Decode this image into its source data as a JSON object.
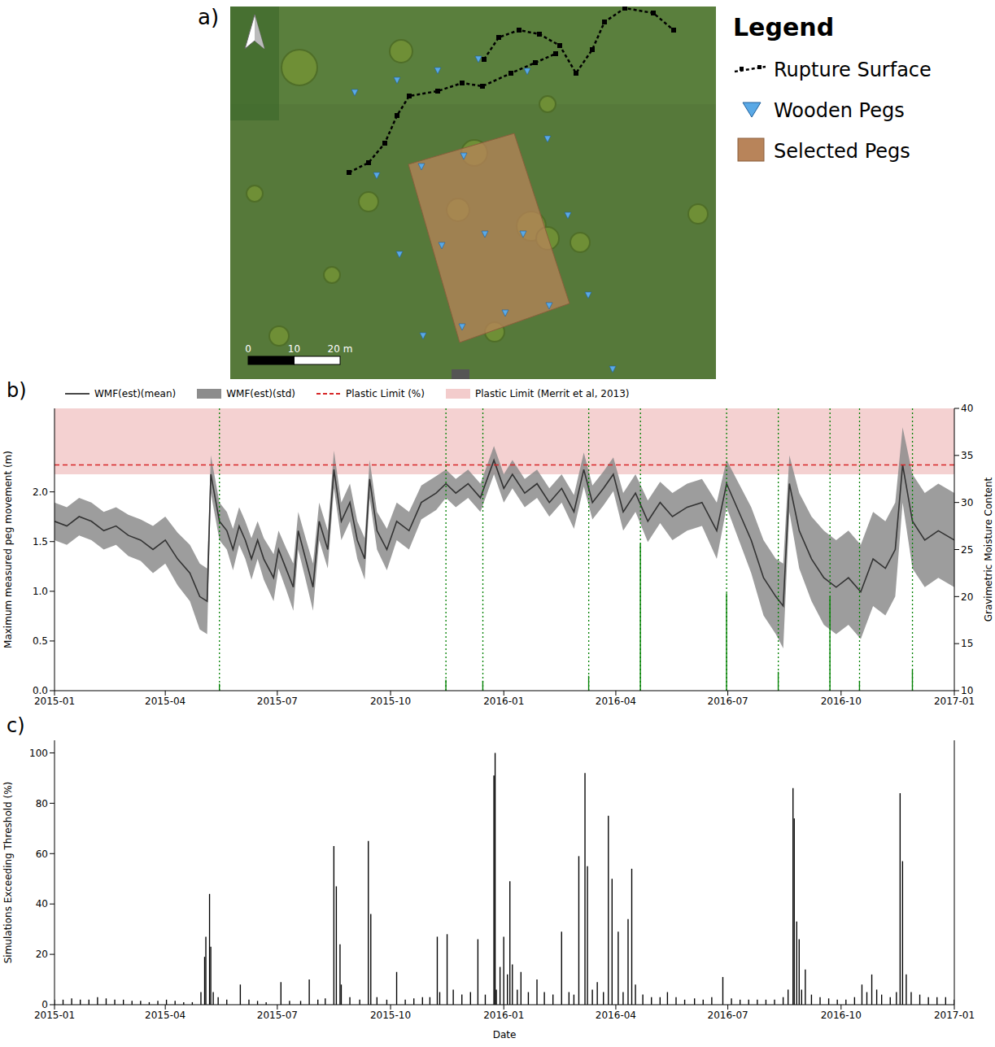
{
  "map": {
    "panel_label": "a)",
    "legend_title": "Legend",
    "legend": [
      {
        "label": "Rupture Surface",
        "color": "#000000",
        "line_style": "dashed",
        "marker": "square"
      },
      {
        "label": "Wooden Pegs",
        "color": "#5aa9e6",
        "marker": "triangle"
      },
      {
        "label": "Selected Pegs",
        "color": "#b8845a",
        "marker": "square"
      }
    ],
    "scale_bar": {
      "ticks": [
        0,
        10,
        {
          "value": 20,
          "label": "20 m"
        }
      ]
    }
  },
  "chart_data": [
    {
      "type": "bar+line",
      "panel_label": "b)",
      "legend": "top",
      "x": [
        0,
        10,
        20,
        30,
        40,
        50,
        60,
        70,
        80,
        90,
        100,
        110,
        118,
        124,
        127,
        134,
        140,
        145,
        150,
        155,
        160,
        165,
        170,
        178,
        182,
        188,
        194,
        198,
        204,
        210,
        215,
        222,
        227,
        233,
        240,
        246,
        252,
        256,
        262,
        270,
        278,
        288,
        298,
        310,
        318,
        326,
        336,
        346,
        357,
        365,
        372,
        382,
        392,
        402,
        412,
        422,
        430,
        437,
        446,
        454,
        462,
        472,
        482,
        492,
        502,
        514,
        526,
        538,
        546,
        556,
        566,
        576,
        586,
        592,
        597,
        605,
        615,
        625,
        635,
        645,
        655,
        665,
        675,
        683,
        689,
        697,
        707,
        718,
        731
      ],
      "xlim": [
        0,
        731
      ],
      "xticks": [
        {
          "value": 0,
          "label": "2015-01"
        },
        {
          "value": 90,
          "label": "2015-04"
        },
        {
          "value": 181,
          "label": "2015-07"
        },
        {
          "value": 273,
          "label": "2015-10"
        },
        {
          "value": 365,
          "label": "2016-01"
        },
        {
          "value": 456,
          "label": "2016-04"
        },
        {
          "value": 547,
          "label": "2016-07"
        },
        {
          "value": 639,
          "label": "2016-10"
        },
        {
          "value": 731,
          "label": "2017-01"
        }
      ],
      "ylim": [
        0,
        2.84
      ],
      "yticks": [
        {
          "value": 0,
          "label": "0.0"
        },
        0.5,
        {
          "value": 1,
          "label": "1.0"
        },
        1.5,
        {
          "value": 2,
          "label": "2.0"
        }
      ],
      "y2lim": [
        10,
        40
      ],
      "y2ticks": [
        10,
        15,
        20,
        25,
        30,
        35,
        40
      ],
      "ylabel": "Maximum measured peg movement (m)",
      "y2label": "Gravimetric Moisture Content",
      "series": [
        {
          "type": "band",
          "name": "Plastic Limit (Merrit et al, 2013)",
          "axis": "y2",
          "color": "#f3cccc",
          "range": [
            33,
            40
          ]
        },
        {
          "type": "area",
          "name": "WMF(est)(std)",
          "axis": "y2",
          "color": "#8c8c8c",
          "lower": [
            26,
            25.5,
            26.5,
            26,
            25,
            25.5,
            24.3,
            23.8,
            22.5,
            23.5,
            21.2,
            19.5,
            16.5,
            16,
            31,
            26,
            25,
            22.8,
            25.5,
            24,
            21.8,
            24,
            21.8,
            19.5,
            23,
            20.8,
            18.5,
            25,
            21.8,
            18.5,
            26,
            23,
            31.5,
            26,
            28,
            24,
            21.8,
            30.5,
            25,
            22.8,
            26,
            25,
            28.2,
            29.2,
            30.5,
            29.5,
            30.5,
            29,
            33,
            30,
            31.5,
            29.5,
            30.5,
            28.5,
            30,
            27.2,
            31.7,
            28.2,
            29.7,
            31.2,
            27,
            29,
            25.8,
            27.8,
            26,
            27,
            27.5,
            24,
            29.5,
            26,
            22.5,
            18,
            16,
            14.5,
            29,
            23,
            19.5,
            17,
            16,
            17,
            15.5,
            19,
            18,
            20,
            30,
            23,
            21,
            22,
            21
          ],
          "upper": [
            30,
            29.5,
            30.5,
            30,
            29,
            29.5,
            28.7,
            28.2,
            27.5,
            28.5,
            26.8,
            25.5,
            23.5,
            23,
            35,
            30,
            29,
            27.2,
            29.5,
            28,
            26.2,
            28,
            26.2,
            24.5,
            27,
            25.2,
            23.5,
            29,
            26.2,
            23.5,
            30,
            27,
            35.5,
            30,
            32,
            28,
            26.2,
            34.5,
            29,
            27.2,
            30,
            29,
            31.8,
            32.8,
            33.5,
            32.5,
            33.5,
            32,
            36,
            33,
            34.5,
            32.5,
            33.5,
            31.5,
            33,
            30.8,
            35.3,
            31.8,
            33.3,
            34.8,
            31,
            33,
            30.2,
            32.2,
            31,
            32,
            32.5,
            30,
            34.5,
            32,
            29.5,
            26,
            24,
            23.5,
            35,
            31,
            28.5,
            27,
            26,
            27,
            25.5,
            29,
            28,
            30,
            38,
            33,
            31,
            32,
            31
          ]
        },
        {
          "type": "line",
          "name": "WMF(est)(mean)",
          "axis": "y2",
          "color": "#333333",
          "values": [
            28,
            27.5,
            28.5,
            28,
            27,
            27.5,
            26.5,
            26,
            25,
            26,
            24,
            22.5,
            20,
            19.5,
            33,
            28,
            27,
            25,
            27.5,
            26,
            24,
            26,
            24,
            22,
            25,
            23,
            21,
            27,
            24,
            21,
            28,
            25,
            33.5,
            28,
            30,
            26,
            24,
            32.5,
            27,
            25,
            28,
            27,
            30,
            31,
            32,
            31,
            32,
            30.5,
            34.5,
            31.5,
            33,
            31,
            32,
            30,
            31.5,
            29,
            33.5,
            30,
            31.5,
            33,
            29,
            31,
            28,
            30,
            28.5,
            29.5,
            30,
            27,
            32,
            29,
            26,
            22,
            20,
            19,
            32,
            27,
            24,
            22,
            21,
            22,
            20.5,
            24,
            23,
            25,
            34,
            28,
            26,
            27,
            26
          ]
        },
        {
          "type": "hline",
          "name": "Plastic Limit (%)",
          "axis": "y2",
          "color": "#d62728",
          "line_style": "dashed",
          "value": 34
        },
        {
          "type": "bar",
          "color": "#008000",
          "x": [
            134,
            318,
            348,
            434,
            476,
            546,
            588,
            630,
            654,
            697
          ],
          "values": [
            0.07,
            0.11,
            0.1,
            0.15,
            1.48,
            0.98,
            0.19,
            0.95,
            0.1,
            0.21
          ]
        }
      ]
    },
    {
      "type": "bar",
      "panel_label": "c)",
      "color": "#000000",
      "x": [
        0,
        7,
        14,
        21,
        28,
        35,
        42,
        49,
        56,
        63,
        70,
        77,
        84,
        91,
        98,
        105,
        112,
        119,
        122,
        123,
        126,
        127,
        129,
        133,
        140,
        151,
        158,
        165,
        172,
        184,
        191,
        200,
        207,
        214,
        220,
        227,
        229,
        232,
        233,
        240,
        248,
        255,
        257,
        262,
        270,
        278,
        285,
        292,
        299,
        305,
        311,
        313,
        319,
        324,
        331,
        338,
        344,
        350,
        357,
        358,
        359,
        362,
        365,
        368,
        370,
        372,
        376,
        379,
        385,
        392,
        398,
        405,
        412,
        418,
        422,
        426,
        431,
        433,
        437,
        441,
        446,
        450,
        453,
        458,
        462,
        466,
        469,
        472,
        478,
        485,
        492,
        498,
        505,
        512,
        520,
        527,
        534,
        543,
        550,
        557,
        564,
        571,
        578,
        585,
        592,
        596,
        600,
        601,
        603,
        605,
        607,
        610,
        615,
        622,
        629,
        636,
        643,
        650,
        656,
        660,
        664,
        668,
        672,
        679,
        684,
        687,
        689,
        692,
        696,
        703,
        710,
        717,
        724,
        731
      ],
      "values": [
        2,
        2,
        2.5,
        2,
        2,
        3,
        2.5,
        2,
        2,
        1.5,
        1.5,
        1,
        1.5,
        2,
        1.5,
        1,
        1,
        5,
        19,
        27,
        44,
        23,
        5,
        3,
        2,
        8,
        2,
        1.5,
        1,
        9,
        1.5,
        1.5,
        10,
        2,
        2.5,
        63,
        47,
        24,
        8,
        3,
        2,
        65,
        36,
        3,
        2,
        13,
        2,
        2.5,
        3,
        3,
        27,
        5,
        28,
        6,
        4,
        5,
        26,
        4,
        91,
        100,
        6,
        15,
        27,
        12,
        49,
        16,
        6,
        13,
        5,
        10,
        5,
        4,
        29,
        5,
        4,
        59,
        92,
        55,
        6,
        9,
        5,
        75,
        50,
        29,
        5,
        34,
        54,
        8,
        4,
        3,
        3,
        5,
        3,
        2,
        2.5,
        2,
        3,
        11,
        2.5,
        2,
        2,
        2,
        2,
        2,
        3,
        6,
        86,
        74,
        33,
        26,
        6,
        14,
        4,
        3,
        2.5,
        2,
        2,
        3,
        8,
        5,
        12,
        6,
        4,
        3,
        5,
        84,
        57,
        12,
        5,
        4,
        3,
        3,
        3,
        2
      ],
      "xlim": [
        0,
        731
      ],
      "xticks": [
        {
          "value": 0,
          "label": "2015-01"
        },
        {
          "value": 90,
          "label": "2015-04"
        },
        {
          "value": 181,
          "label": "2015-07"
        },
        {
          "value": 273,
          "label": "2015-10"
        },
        {
          "value": 365,
          "label": "2016-01"
        },
        {
          "value": 456,
          "label": "2016-04"
        },
        {
          "value": 547,
          "label": "2016-07"
        },
        {
          "value": 639,
          "label": "2016-10"
        },
        {
          "value": 731,
          "label": "2017-01"
        }
      ],
      "ylim": [
        0,
        105
      ],
      "yticks": [
        0,
        20,
        40,
        60,
        80,
        100
      ],
      "xlabel": "Date",
      "ylabel": "Simulations Exceeding Threshold (%)"
    }
  ]
}
